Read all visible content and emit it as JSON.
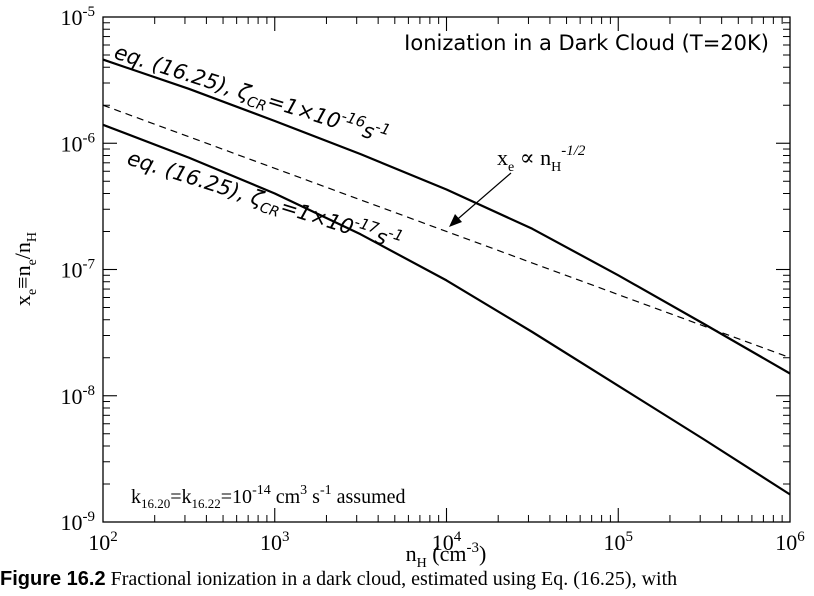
{
  "chart_data": {
    "type": "line",
    "title": "Ionization in a Dark Cloud (T=20K)",
    "xlabel": "n_H (cm^-3)",
    "ylabel": "x_e ≡ n_e / n_H",
    "xscale": "log",
    "yscale": "log",
    "xlim": [
      100,
      1000000
    ],
    "ylim": [
      1e-09,
      1e-05
    ],
    "x_ticks": [
      "10^2",
      "10^3",
      "10^4",
      "10^5",
      "10^6"
    ],
    "y_ticks": [
      "10^-9",
      "10^-8",
      "10^-7",
      "10^-6",
      "10^-5"
    ],
    "grid": false,
    "series": [
      {
        "label": "eq. (16.25), ζCR=1×10^-16 s^-1",
        "style": "solid",
        "x": [
          100,
          316,
          1000,
          3160,
          10000,
          31600,
          100000,
          316000,
          1000000
        ],
        "y": [
          4.6e-06,
          2.7e-06,
          1.5e-06,
          8.2e-07,
          4.3e-07,
          2.1e-07,
          9e-08,
          3.7e-08,
          1.5e-08
        ]
      },
      {
        "label": "x_e ∝ n_H^-1/2",
        "style": "dashed",
        "x": [
          100,
          1000000
        ],
        "y": [
          2e-06,
          2e-08
        ]
      },
      {
        "label": "eq. (16.25), ζCR=1×10^-17 s^-1",
        "style": "solid",
        "x": [
          100,
          316,
          1000,
          3160,
          10000,
          31600,
          100000,
          316000,
          1000000
        ],
        "y": [
          1.4e-06,
          7.7e-07,
          4e-07,
          1.9e-07,
          8.2e-08,
          3.2e-08,
          1.2e-08,
          4.5e-09,
          1.65e-09
        ]
      }
    ],
    "annotations": {
      "upper_curve": "eq. (16.25), ζCR=1×10^-16 s^-1",
      "lower_curve": "eq. (16.25), ζCR=1×10^-17 s^-1",
      "dashed_line": "x_e ∝ n_H^-1/2",
      "assumption": "k16.20=k16.22=10^-14 cm^3 s^-1 assumed"
    }
  },
  "caption": {
    "label": "Figure 16.2",
    "text": " Fractional ionization in a dark cloud, estimated using Eq. (16.25), with"
  }
}
